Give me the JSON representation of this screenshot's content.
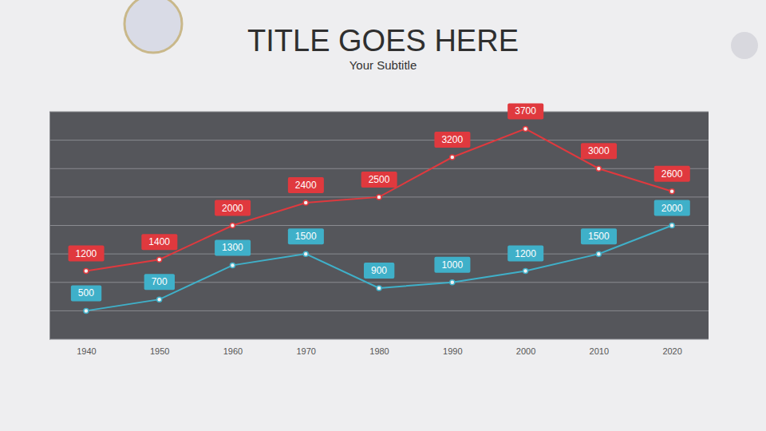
{
  "chart_data": {
    "type": "line",
    "title": "TITLE GOES HERE",
    "subtitle": "Your Subtitle",
    "categories": [
      "1940",
      "1950",
      "1960",
      "1970",
      "1980",
      "1990",
      "2000",
      "2010",
      "2020"
    ],
    "series": [
      {
        "color": "#e0393e",
        "marker": "circle",
        "values": [
          1200,
          1400,
          2000,
          2400,
          2500,
          3200,
          3700,
          3000,
          2600
        ]
      },
      {
        "color": "#3fb0c9",
        "marker": "circle",
        "values": [
          500,
          700,
          1300,
          1500,
          900,
          1000,
          1200,
          1500,
          2000
        ]
      }
    ],
    "ylim": [
      0,
      4000
    ],
    "yticks": [
      0,
      500,
      1000,
      1500,
      2000,
      2500,
      3000,
      3500,
      4000
    ],
    "grid": true,
    "data_labels": true,
    "tick_labels": "x"
  }
}
